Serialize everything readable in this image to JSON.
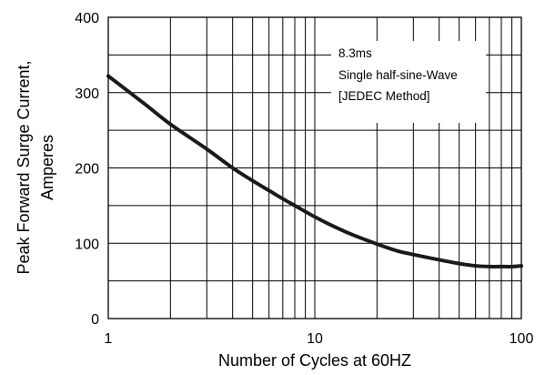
{
  "chart_data": {
    "type": "line",
    "title": "",
    "xlabel": "Number of Cycles at 60HZ",
    "ylabel_lines": [
      "Peak Forward Surge Current,",
      "Amperes"
    ],
    "xscale": "log",
    "xlim": [
      1,
      100
    ],
    "ylim": [
      0,
      400
    ],
    "x_ticks": [
      1,
      10,
      100
    ],
    "x_tick_labels": [
      "1",
      "10",
      "100"
    ],
    "y_ticks": [
      0,
      100,
      200,
      300,
      400
    ],
    "y_tick_labels": [
      "0",
      "100",
      "200",
      "300",
      "400"
    ],
    "grid": true,
    "annotation_lines": [
      "8.3ms",
      "Single half-sine-Wave",
      "[JEDEC Method]"
    ],
    "annotation_position": "top-right",
    "series": [
      {
        "x": [
          1,
          1.5,
          2,
          3,
          4,
          5,
          6,
          7,
          8,
          10,
          12,
          15,
          20,
          25,
          30,
          40,
          50,
          60,
          70,
          80,
          90,
          100
        ],
        "y": [
          322,
          285,
          258,
          225,
          200,
          183,
          170,
          159,
          150,
          135,
          124,
          112,
          99,
          90,
          85,
          78,
          73,
          70,
          69,
          69,
          69,
          70
        ],
        "color": "#1a1a1a"
      }
    ]
  }
}
